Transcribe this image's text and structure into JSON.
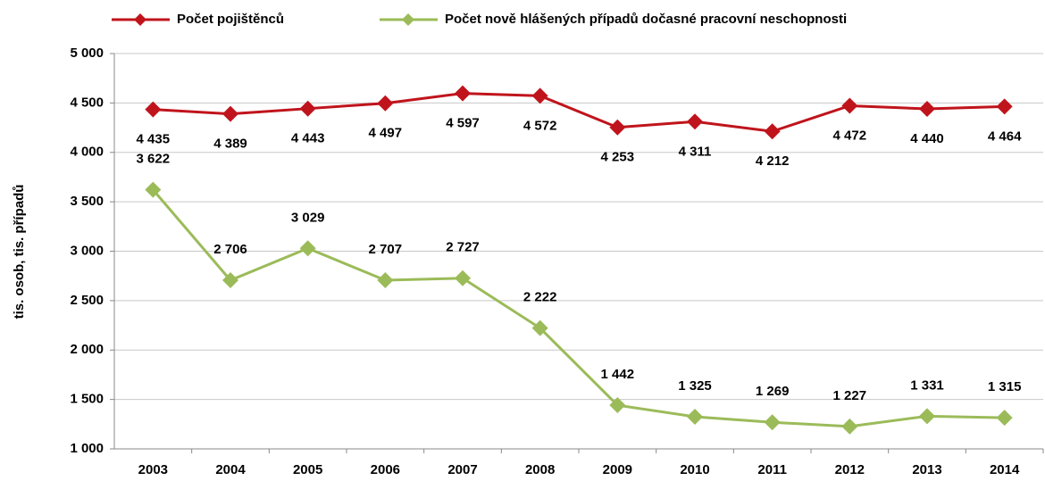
{
  "chart_data": {
    "type": "line",
    "y_label": "tis. osob, tis. případů",
    "categories": [
      "2003",
      "2004",
      "2005",
      "2006",
      "2007",
      "2008",
      "2009",
      "2010",
      "2011",
      "2012",
      "2013",
      "2014"
    ],
    "series": [
      {
        "name": "Počet pojištěnců",
        "color": "#c0141c",
        "values": [
          4435,
          4389,
          4443,
          4497,
          4597,
          4572,
          4253,
          4311,
          4212,
          4472,
          4440,
          4464
        ],
        "value_labels": [
          "4 435",
          "4 389",
          "4 443",
          "4 497",
          "4 597",
          "4 572",
          "4 253",
          "4 311",
          "4 212",
          "4 472",
          "4 440",
          "4 464"
        ]
      },
      {
        "name": "Počet nově hlášených případů dočasné pracovní neschopnosti",
        "color": "#9bbb59",
        "values": [
          3622,
          2706,
          3029,
          2707,
          2727,
          2222,
          1442,
          1325,
          1269,
          1227,
          1331,
          1315
        ],
        "value_labels": [
          "3 622",
          "2 706",
          "3 029",
          "2 707",
          "2 727",
          "2 222",
          "1 442",
          "1 325",
          "1 269",
          "1 227",
          "1 331",
          "1 315"
        ]
      }
    ],
    "ylim": [
      1000,
      5000
    ],
    "yticks": [
      {
        "value": 1000,
        "label": "1 000"
      },
      {
        "value": 1500,
        "label": "1 500"
      },
      {
        "value": 2000,
        "label": "2 000"
      },
      {
        "value": 2500,
        "label": "2 500"
      },
      {
        "value": 3000,
        "label": "3 000"
      },
      {
        "value": 3500,
        "label": "3 500"
      },
      {
        "value": 4000,
        "label": "4 000"
      },
      {
        "value": 4500,
        "label": "4 500"
      },
      {
        "value": 5000,
        "label": "5 000"
      }
    ],
    "grid": true,
    "legend": "top"
  }
}
